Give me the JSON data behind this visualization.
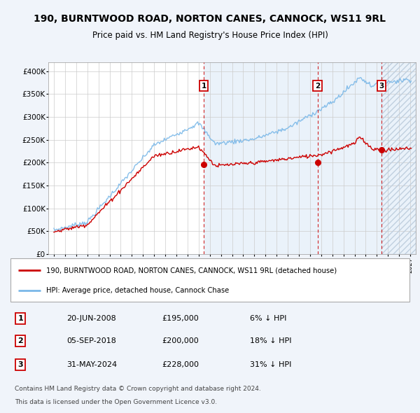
{
  "title": "190, BURNTWOOD ROAD, NORTON CANES, CANNOCK, WS11 9RL",
  "subtitle": "Price paid vs. HM Land Registry's House Price Index (HPI)",
  "legend_line1": "190, BURNTWOOD ROAD, NORTON CANES, CANNOCK, WS11 9RL (detached house)",
  "legend_line2": "HPI: Average price, detached house, Cannock Chase",
  "transactions": [
    {
      "num": 1,
      "date": "20-JUN-2008",
      "price": 195000,
      "pct": "6%",
      "dir": "↓",
      "year": 2008.46
    },
    {
      "num": 2,
      "date": "05-SEP-2018",
      "price": 200000,
      "pct": "18%",
      "dir": "↓",
      "year": 2018.67
    },
    {
      "num": 3,
      "date": "31-MAY-2024",
      "price": 228000,
      "pct": "31%",
      "dir": "↓",
      "year": 2024.41
    }
  ],
  "footnote1": "Contains HM Land Registry data © Crown copyright and database right 2024.",
  "footnote2": "This data is licensed under the Open Government Licence v3.0.",
  "ylim": [
    0,
    420000
  ],
  "yticks": [
    0,
    50000,
    100000,
    150000,
    200000,
    250000,
    300000,
    350000,
    400000
  ],
  "xlim_start": 1994.5,
  "xlim_end": 2027.5,
  "background_color": "#f0f4fa",
  "plot_bg": "#ffffff",
  "hpi_color": "#7ab8e8",
  "price_color": "#cc0000",
  "shade_start": 2008.46,
  "shade_end": 2024.41,
  "future_start": 2024.41
}
